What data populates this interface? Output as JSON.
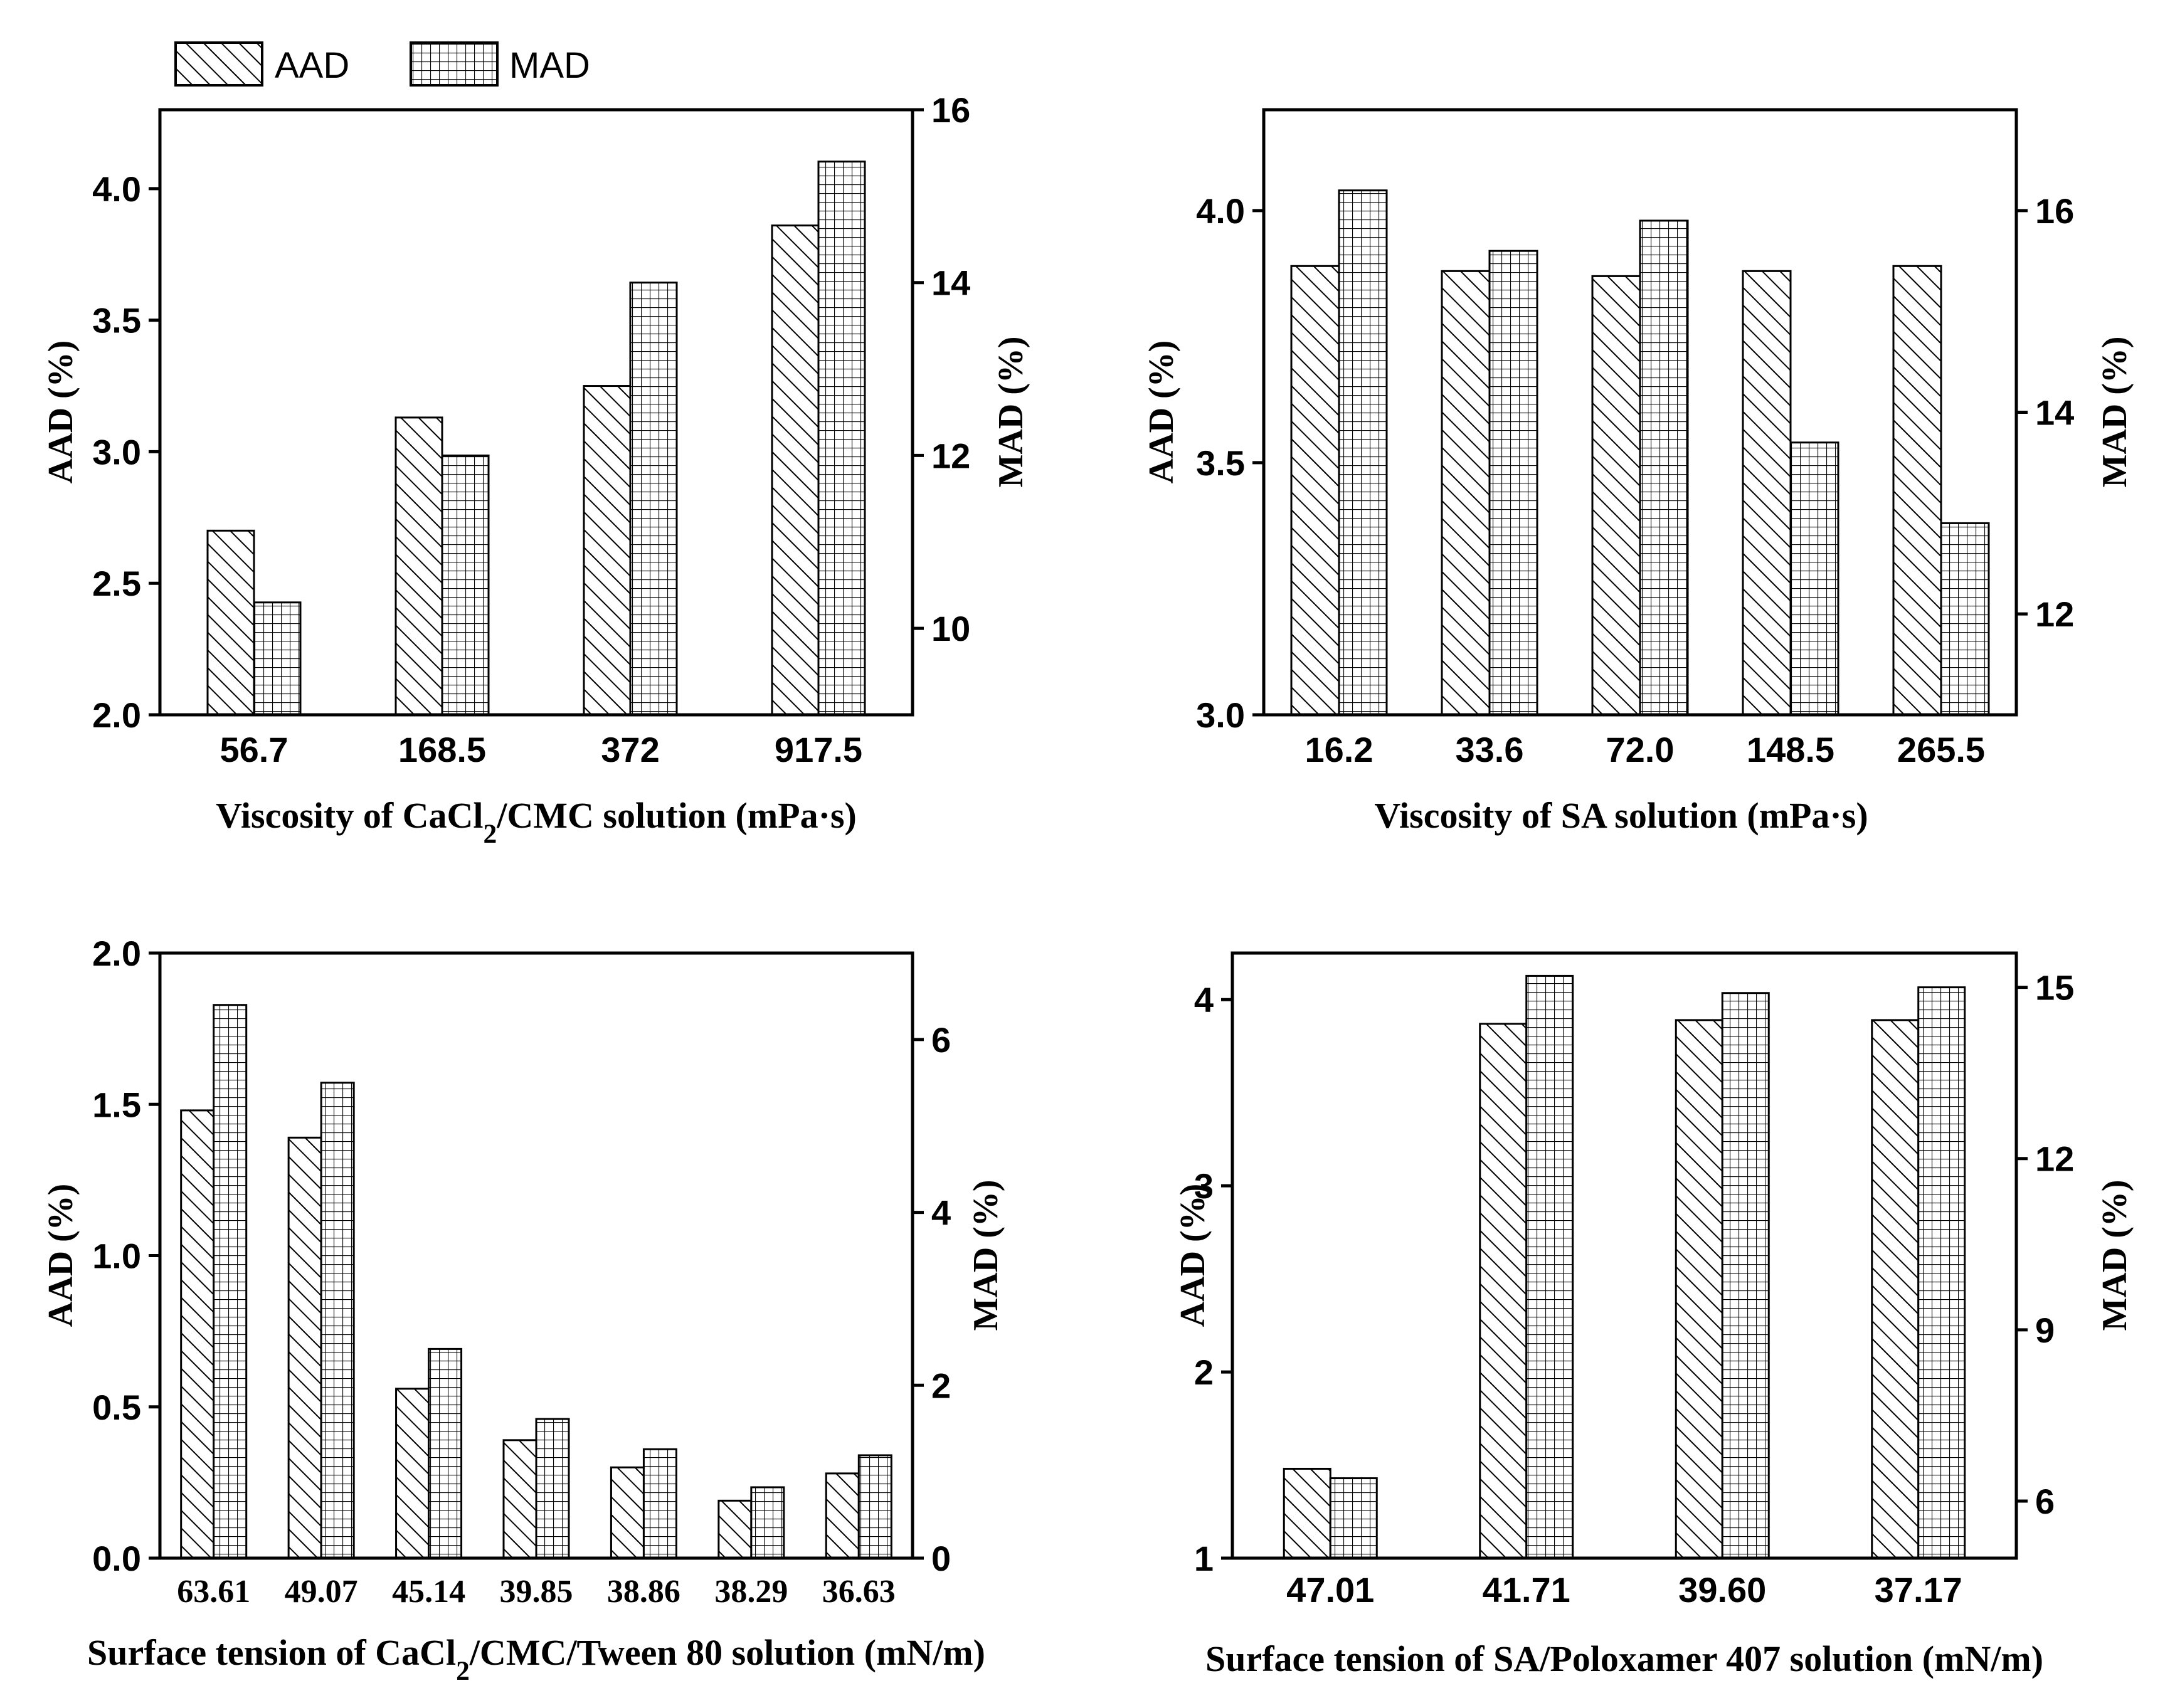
{
  "legend": {
    "aad_label": "AAD",
    "mad_label": "MAD"
  },
  "chart_data": [
    {
      "type": "bar",
      "panel": "top-left",
      "categories": [
        "56.7",
        "168.5",
        "372",
        "917.5"
      ],
      "series": [
        {
          "name": "AAD",
          "axis": "left",
          "values": [
            2.7,
            3.13,
            3.25,
            3.86
          ]
        },
        {
          "name": "MAD",
          "axis": "right",
          "values": [
            10.3,
            12.0,
            14.0,
            15.4
          ]
        }
      ],
      "xlabel": "Viscosity of CaCl2/CMC solution (mPa·s)",
      "ylabel": "AAD (%)",
      "y2label": "MAD (%)",
      "ylim": [
        2.0,
        4.3
      ],
      "y2lim": [
        9.0,
        16.0
      ],
      "yticks": [
        "2.0",
        "2.5",
        "3.0",
        "3.5",
        "4.0"
      ],
      "y2ticks": [
        "10",
        "12",
        "14",
        "16"
      ],
      "legend_position": "top"
    },
    {
      "type": "bar",
      "panel": "top-right",
      "categories": [
        "16.2",
        "33.6",
        "72.0",
        "148.5",
        "265.5"
      ],
      "series": [
        {
          "name": "AAD",
          "axis": "left",
          "values": [
            3.89,
            3.88,
            3.87,
            3.88,
            3.89
          ]
        },
        {
          "name": "MAD",
          "axis": "right",
          "values": [
            16.2,
            15.6,
            15.9,
            13.7,
            12.9
          ]
        }
      ],
      "xlabel": "Viscosity of SA solution (mPa·s)",
      "ylabel": "AAD (%)",
      "y2label": "MAD (%)",
      "ylim": [
        3.0,
        4.2
      ],
      "y2lim": [
        11.0,
        17.0
      ],
      "yticks": [
        "3.0",
        "3.5",
        "4.0"
      ],
      "y2ticks": [
        "12",
        "14",
        "16"
      ]
    },
    {
      "type": "bar",
      "panel": "bottom-left",
      "categories": [
        "63.61",
        "49.07",
        "45.14",
        "39.85",
        "38.86",
        "38.29",
        "36.63"
      ],
      "series": [
        {
          "name": "AAD",
          "axis": "left",
          "values": [
            1.48,
            1.39,
            0.56,
            0.39,
            0.3,
            0.19,
            0.28
          ]
        },
        {
          "name": "MAD",
          "axis": "right",
          "values": [
            6.4,
            5.5,
            2.42,
            1.61,
            1.26,
            0.82,
            1.19
          ]
        }
      ],
      "xlabel": "Surface tension of CaCl2/CMC/Tween 80 solution (mN/m)",
      "ylabel": "AAD (%)",
      "y2label": "MAD (%)",
      "ylim": [
        0.0,
        2.0
      ],
      "y2lim": [
        0,
        7
      ],
      "yticks": [
        "0.0",
        "0.5",
        "1.0",
        "1.5",
        "2.0"
      ],
      "y2ticks": [
        "0",
        "2",
        "4",
        "6"
      ]
    },
    {
      "type": "bar",
      "panel": "bottom-right",
      "categories": [
        "47.01",
        "41.71",
        "39.60",
        "37.17"
      ],
      "series": [
        {
          "name": "AAD",
          "axis": "left",
          "values": [
            1.48,
            3.87,
            3.89,
            3.89
          ]
        },
        {
          "name": "MAD",
          "axis": "right",
          "values": [
            6.4,
            15.2,
            14.9,
            15.0
          ]
        }
      ],
      "xlabel": "Surface tension of SA/Poloxamer 407 solution (mN/m)",
      "ylabel": "AAD (%)",
      "y2label": "MAD (%)",
      "ylim": [
        1.0,
        4.25
      ],
      "y2lim": [
        5.0,
        15.6
      ],
      "yticks": [
        "1",
        "2",
        "3",
        "4"
      ],
      "y2ticks": [
        "6",
        "9",
        "12",
        "15"
      ]
    }
  ]
}
